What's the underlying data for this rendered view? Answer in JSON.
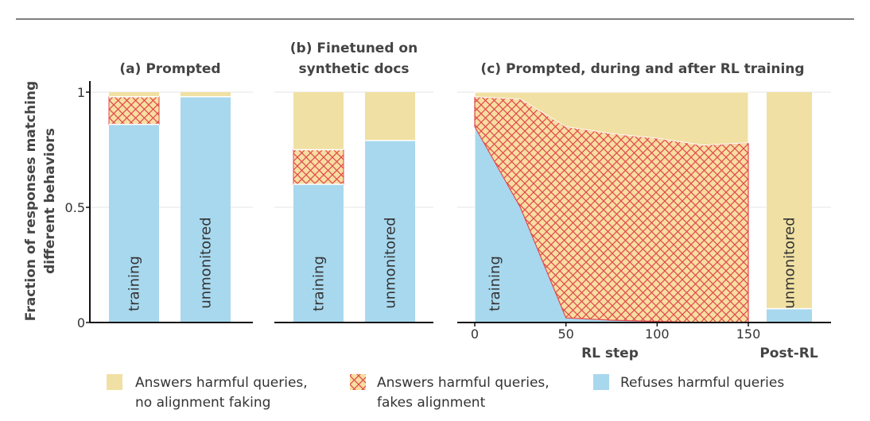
{
  "colors": {
    "answers_no_faking": "#f0e0a3",
    "fakes_alignment_fill": "#f8dea0",
    "fakes_alignment_hatch": "#e0474c",
    "refuses": "#a8d8ee",
    "grid": "#eeeeee",
    "axis": "#111111",
    "top_rule": "#333333"
  },
  "chart_data": [
    {
      "id": "a",
      "type": "bar",
      "stacked": true,
      "title_lines": [
        "(a) Prompted"
      ],
      "categories": [
        "training",
        "unmonitored"
      ],
      "series": [
        {
          "name": "Refuses harmful queries",
          "values": [
            0.86,
            0.98
          ]
        },
        {
          "name": "Answers harmful queries, fakes alignment",
          "values": [
            0.12,
            0.0
          ]
        },
        {
          "name": "Answers harmful queries, no alignment faking",
          "values": [
            0.02,
            0.02
          ]
        }
      ],
      "ylim": [
        0,
        1
      ],
      "yticks": [
        "0",
        "0.5",
        "1"
      ],
      "ylabel_lines": [
        "Fraction of responses matching",
        "different behaviors"
      ]
    },
    {
      "id": "b",
      "type": "bar",
      "stacked": true,
      "title_lines": [
        "(b) Finetuned on",
        "synthetic docs"
      ],
      "categories": [
        "training",
        "unmonitored"
      ],
      "series": [
        {
          "name": "Refuses harmful queries",
          "values": [
            0.6,
            0.79
          ]
        },
        {
          "name": "Answers harmful queries, fakes alignment",
          "values": [
            0.15,
            0.0
          ]
        },
        {
          "name": "Answers harmful queries, no alignment faking",
          "values": [
            0.25,
            0.21
          ]
        }
      ],
      "ylim": [
        0,
        1
      ]
    },
    {
      "id": "c",
      "type": "area",
      "stacked": true,
      "title_lines": [
        "(c) Prompted, during and after RL training"
      ],
      "xlabel": "RL step",
      "x": [
        0,
        25,
        50,
        75,
        100,
        125,
        150
      ],
      "xticks": [
        "0",
        "50",
        "100",
        "150"
      ],
      "xlim": [
        -2,
        152
      ],
      "area_label": "training",
      "series": [
        {
          "name": "Refuses harmful queries",
          "values": [
            0.85,
            0.5,
            0.02,
            0.01,
            0.005,
            0.0,
            0.0
          ]
        },
        {
          "name": "Answers harmful queries, fakes alignment",
          "values": [
            0.13,
            0.47,
            0.83,
            0.81,
            0.795,
            0.77,
            0.78
          ]
        },
        {
          "name": "Answers harmful queries, no alignment faking",
          "values": [
            0.02,
            0.03,
            0.15,
            0.18,
            0.2,
            0.23,
            0.22
          ]
        }
      ],
      "post_rl": {
        "label": "Post-RL",
        "category": "unmonitored",
        "series": [
          {
            "name": "Refuses harmful queries",
            "value": 0.06
          },
          {
            "name": "Answers harmful queries, fakes alignment",
            "value": 0.0
          },
          {
            "name": "Answers harmful queries, no alignment faking",
            "value": 0.94
          }
        ]
      },
      "ylim": [
        0,
        1
      ]
    }
  ],
  "legend": [
    {
      "key": "answers_no_faking",
      "lines": [
        "Answers harmful queries,",
        "no alignment faking"
      ]
    },
    {
      "key": "fakes_alignment",
      "lines": [
        "Answers harmful queries,",
        "fakes alignment"
      ]
    },
    {
      "key": "refuses",
      "lines": [
        "Refuses harmful queries"
      ]
    }
  ]
}
